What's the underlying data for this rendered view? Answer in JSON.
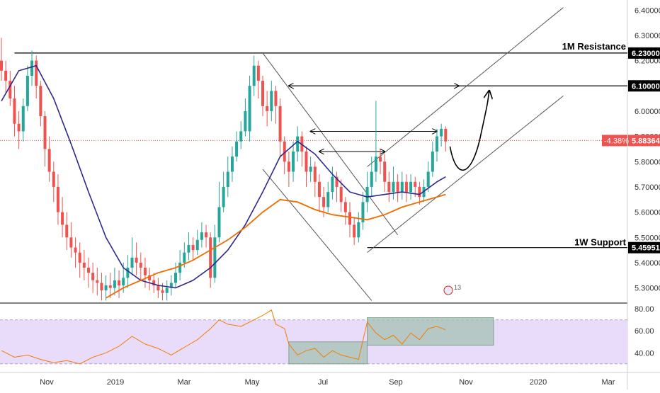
{
  "chart_data": {
    "type": "candlestick",
    "title": "",
    "xlabel": "",
    "ylabel": "",
    "ylim": [
      5.24,
      6.44
    ],
    "y_ticks": [
      "6.40000",
      "6.30000",
      "6.20000",
      "6.10000",
      "6.00000",
      "5.90000",
      "5.80000",
      "5.70000",
      "5.60000",
      "5.50000",
      "5.40000",
      "5.30000"
    ],
    "x_ticks": [
      "Nov",
      "2019",
      "Mar",
      "May",
      "Jul",
      "Sep",
      "Nov",
      "2020",
      "Mar"
    ],
    "grid": false,
    "colors": {
      "up": "#26a69a",
      "down": "#ef5350",
      "ma_fast": "#2e2a8c",
      "ma_slow": "#ef6c00",
      "rsi": "#f57c00",
      "rsi_band": "#e9dcfa",
      "zone": "#9fbfae",
      "level": "#000000"
    },
    "levels": [
      {
        "label": "1M Resistance",
        "price": 6.23,
        "value_text": "6.23000"
      },
      {
        "label": "",
        "price": 6.1,
        "value_text": "6.10000"
      },
      {
        "label": "1W Support",
        "price": 5.45951,
        "value_text": "5.45951"
      }
    ],
    "current": {
      "price": 5.88364,
      "value_text": "5.88364",
      "change_text": "-4.38%"
    },
    "ohlc": [
      [
        6.2,
        6.16,
        6.29,
        6.12
      ],
      [
        6.16,
        6.12,
        6.2,
        6.07
      ],
      [
        6.12,
        6.05,
        6.16,
        6.02
      ],
      [
        6.05,
        5.95,
        6.1,
        5.9
      ],
      [
        5.95,
        5.92,
        6.0,
        5.85
      ],
      [
        5.92,
        6.02,
        6.05,
        5.88
      ],
      [
        6.02,
        6.14,
        6.18,
        6.0
      ],
      [
        6.14,
        6.2,
        6.24,
        6.1
      ],
      [
        6.2,
        6.1,
        6.22,
        6.05
      ],
      [
        6.1,
        5.98,
        6.12,
        5.94
      ],
      [
        5.98,
        5.85,
        6.0,
        5.78
      ],
      [
        5.85,
        5.76,
        5.9,
        5.72
      ],
      [
        5.76,
        5.7,
        5.8,
        5.64
      ],
      [
        5.7,
        5.6,
        5.75,
        5.55
      ],
      [
        5.6,
        5.55,
        5.66,
        5.5
      ],
      [
        5.55,
        5.5,
        5.6,
        5.45
      ],
      [
        5.5,
        5.46,
        5.56,
        5.42
      ],
      [
        5.46,
        5.44,
        5.5,
        5.38
      ],
      [
        5.44,
        5.4,
        5.48,
        5.34
      ],
      [
        5.4,
        5.38,
        5.45,
        5.33
      ],
      [
        5.38,
        5.36,
        5.42,
        5.3
      ],
      [
        5.36,
        5.33,
        5.4,
        5.28
      ],
      [
        5.33,
        5.32,
        5.38,
        5.27
      ],
      [
        5.32,
        5.29,
        5.36,
        5.25
      ],
      [
        5.29,
        5.31,
        5.35,
        5.25
      ],
      [
        5.31,
        5.3,
        5.36,
        5.26
      ],
      [
        5.3,
        5.33,
        5.38,
        5.27
      ],
      [
        5.33,
        5.31,
        5.37,
        5.26
      ],
      [
        5.31,
        5.34,
        5.4,
        5.28
      ],
      [
        5.34,
        5.38,
        5.43,
        5.3
      ],
      [
        5.38,
        5.42,
        5.5,
        5.35
      ],
      [
        5.42,
        5.4,
        5.48,
        5.35
      ],
      [
        5.4,
        5.38,
        5.44,
        5.33
      ],
      [
        5.38,
        5.35,
        5.42,
        5.3
      ],
      [
        5.35,
        5.33,
        5.38,
        5.29
      ],
      [
        5.33,
        5.31,
        5.36,
        5.28
      ],
      [
        5.31,
        5.29,
        5.34,
        5.26
      ],
      [
        5.29,
        5.28,
        5.32,
        5.25
      ],
      [
        5.28,
        5.3,
        5.33,
        5.25
      ],
      [
        5.3,
        5.32,
        5.35,
        5.27
      ],
      [
        5.32,
        5.36,
        5.4,
        5.3
      ],
      [
        5.36,
        5.4,
        5.45,
        5.33
      ],
      [
        5.4,
        5.44,
        5.48,
        5.38
      ],
      [
        5.44,
        5.47,
        5.52,
        5.41
      ],
      [
        5.47,
        5.45,
        5.5,
        5.41
      ],
      [
        5.45,
        5.49,
        5.53,
        5.43
      ],
      [
        5.49,
        5.52,
        5.56,
        5.46
      ],
      [
        5.52,
        5.5,
        5.55,
        5.46
      ],
      [
        5.5,
        5.34,
        5.52,
        5.3
      ],
      [
        5.34,
        5.5,
        5.55,
        5.32
      ],
      [
        5.5,
        5.62,
        5.72,
        5.48
      ],
      [
        5.62,
        5.7,
        5.76,
        5.6
      ],
      [
        5.7,
        5.76,
        5.82,
        5.66
      ],
      [
        5.76,
        5.82,
        5.86,
        5.72
      ],
      [
        5.82,
        5.88,
        5.92,
        5.8
      ],
      [
        5.88,
        5.92,
        5.96,
        5.85
      ],
      [
        5.92,
        6.0,
        6.05,
        5.9
      ],
      [
        5.92,
        6.1,
        6.14,
        5.88
      ],
      [
        6.1,
        6.18,
        6.22,
        6.06
      ],
      [
        6.18,
        6.12,
        6.2,
        6.05
      ],
      [
        6.12,
        6.02,
        6.14,
        5.98
      ],
      [
        6.02,
        6.0,
        6.08,
        5.94
      ],
      [
        6.0,
        6.08,
        6.12,
        5.96
      ],
      [
        6.08,
        6.02,
        6.1,
        5.95
      ],
      [
        6.02,
        5.88,
        6.05,
        5.82
      ],
      [
        5.88,
        5.8,
        5.9,
        5.75
      ],
      [
        5.8,
        5.76,
        5.84,
        5.7
      ],
      [
        5.76,
        5.84,
        5.88,
        5.72
      ],
      [
        5.84,
        5.9,
        5.94,
        5.8
      ],
      [
        5.9,
        5.84,
        5.92,
        5.78
      ],
      [
        5.84,
        5.76,
        5.86,
        5.7
      ],
      [
        5.76,
        5.78,
        5.82,
        5.72
      ],
      [
        5.78,
        5.72,
        5.8,
        5.66
      ],
      [
        5.72,
        5.66,
        5.75,
        5.6
      ],
      [
        5.66,
        5.62,
        5.7,
        5.58
      ],
      [
        5.62,
        5.68,
        5.72,
        5.6
      ],
      [
        5.68,
        5.74,
        5.78,
        5.65
      ],
      [
        5.74,
        5.7,
        5.76,
        5.64
      ],
      [
        5.7,
        5.64,
        5.73,
        5.6
      ],
      [
        5.64,
        5.6,
        5.66,
        5.55
      ],
      [
        5.6,
        5.55,
        5.64,
        5.5
      ],
      [
        5.55,
        5.5,
        5.58,
        5.47
      ],
      [
        5.5,
        5.56,
        5.6,
        5.48
      ],
      [
        5.56,
        5.64,
        5.68,
        5.53
      ],
      [
        5.64,
        5.7,
        5.76,
        5.6
      ],
      [
        5.7,
        5.76,
        5.82,
        5.66
      ],
      [
        5.76,
        5.82,
        6.04,
        5.72
      ],
      [
        5.82,
        5.8,
        5.85,
        5.75
      ],
      [
        5.8,
        5.72,
        5.83,
        5.68
      ],
      [
        5.72,
        5.68,
        5.76,
        5.64
      ],
      [
        5.68,
        5.72,
        5.78,
        5.65
      ],
      [
        5.72,
        5.68,
        5.75,
        5.64
      ],
      [
        5.68,
        5.72,
        5.76,
        5.65
      ],
      [
        5.72,
        5.68,
        5.75,
        5.64
      ],
      [
        5.68,
        5.72,
        5.75,
        5.65
      ],
      [
        5.72,
        5.7,
        5.74,
        5.66
      ],
      [
        5.7,
        5.66,
        5.72,
        5.63
      ],
      [
        5.66,
        5.7,
        5.73,
        5.64
      ],
      [
        5.7,
        5.76,
        5.8,
        5.68
      ],
      [
        5.76,
        5.84,
        5.88,
        5.74
      ],
      [
        5.84,
        5.9,
        5.93,
        5.8
      ],
      [
        5.9,
        5.93,
        5.95,
        5.86
      ],
      [
        5.93,
        5.88,
        5.94,
        5.84
      ]
    ],
    "ma_fast": [
      [
        0,
        6.04
      ],
      [
        4,
        6.16
      ],
      [
        8,
        6.18
      ],
      [
        12,
        6.05
      ],
      [
        16,
        5.87
      ],
      [
        20,
        5.68
      ],
      [
        24,
        5.5
      ],
      [
        28,
        5.38
      ],
      [
        32,
        5.33
      ],
      [
        36,
        5.31
      ],
      [
        40,
        5.3
      ],
      [
        44,
        5.33
      ],
      [
        48,
        5.38
      ],
      [
        52,
        5.45
      ],
      [
        56,
        5.55
      ],
      [
        60,
        5.68
      ],
      [
        64,
        5.82
      ],
      [
        68,
        5.88
      ],
      [
        72,
        5.83
      ],
      [
        76,
        5.75
      ],
      [
        80,
        5.68
      ],
      [
        84,
        5.66
      ],
      [
        88,
        5.67
      ],
      [
        92,
        5.68
      ],
      [
        96,
        5.67
      ],
      [
        100,
        5.72
      ],
      [
        102,
        5.74
      ]
    ],
    "ma_slow": [
      [
        24,
        5.26
      ],
      [
        28,
        5.3
      ],
      [
        32,
        5.33
      ],
      [
        36,
        5.36
      ],
      [
        40,
        5.38
      ],
      [
        44,
        5.41
      ],
      [
        48,
        5.45
      ],
      [
        52,
        5.49
      ],
      [
        56,
        5.54
      ],
      [
        60,
        5.6
      ],
      [
        64,
        5.65
      ],
      [
        68,
        5.64
      ],
      [
        72,
        5.61
      ],
      [
        76,
        5.59
      ],
      [
        80,
        5.58
      ],
      [
        84,
        5.57
      ],
      [
        88,
        5.59
      ],
      [
        92,
        5.62
      ],
      [
        96,
        5.64
      ],
      [
        100,
        5.66
      ],
      [
        102,
        5.67
      ]
    ],
    "rsi": {
      "ylim": [
        26,
        84
      ],
      "y_ticks": [
        "80.00",
        "60.00",
        "40.00"
      ],
      "band": [
        30,
        70
      ],
      "points": [
        [
          0,
          42
        ],
        [
          3,
          36
        ],
        [
          6,
          38
        ],
        [
          9,
          34
        ],
        [
          12,
          31
        ],
        [
          15,
          33
        ],
        [
          18,
          30
        ],
        [
          21,
          36
        ],
        [
          24,
          40
        ],
        [
          27,
          46
        ],
        [
          30,
          55
        ],
        [
          33,
          48
        ],
        [
          36,
          44
        ],
        [
          39,
          38
        ],
        [
          42,
          45
        ],
        [
          45,
          52
        ],
        [
          48,
          62
        ],
        [
          50,
          70
        ],
        [
          52,
          66
        ],
        [
          55,
          64
        ],
        [
          58,
          70
        ],
        [
          60,
          74
        ],
        [
          62,
          79
        ],
        [
          63,
          66
        ],
        [
          65,
          62
        ],
        [
          66,
          48
        ],
        [
          68,
          38
        ],
        [
          70,
          42
        ],
        [
          72,
          44
        ],
        [
          74,
          36
        ],
        [
          76,
          42
        ],
        [
          78,
          38
        ],
        [
          80,
          36
        ],
        [
          82,
          34
        ],
        [
          84,
          68
        ],
        [
          86,
          58
        ],
        [
          88,
          52
        ],
        [
          90,
          56
        ],
        [
          92,
          48
        ],
        [
          94,
          58
        ],
        [
          96,
          52
        ],
        [
          98,
          62
        ],
        [
          100,
          64
        ],
        [
          102,
          61
        ]
      ],
      "zones": [
        {
          "x0": 66,
          "x1": 84,
          "y0": 30,
          "y1": 50
        },
        {
          "x0": 84,
          "x1": 113,
          "y0": 47,
          "y1": 72
        }
      ]
    },
    "annotations": [
      "13"
    ]
  }
}
